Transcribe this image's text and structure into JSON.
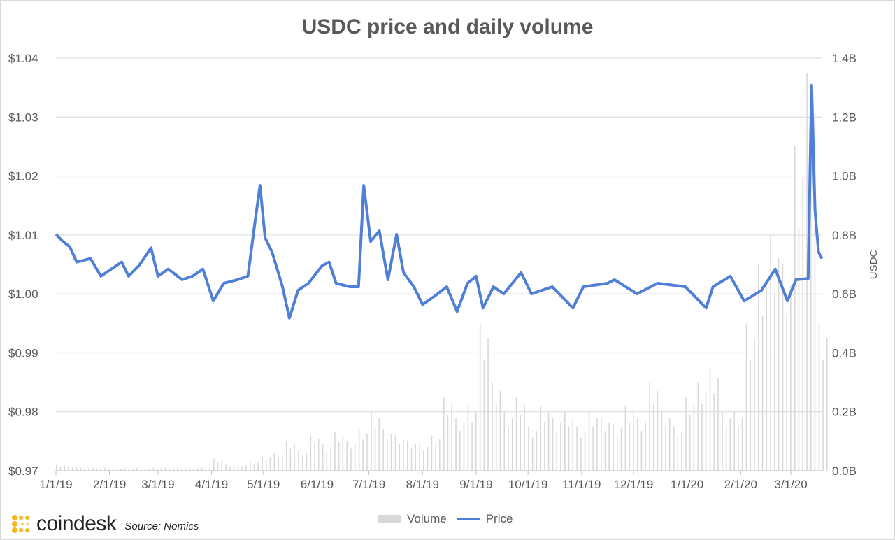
{
  "brand": {
    "name": "coindesk",
    "source": "Source: Nomics",
    "logo_color": "#f5b81c"
  },
  "chart_data": {
    "type": "bar+line",
    "title": "USDC price and daily volume",
    "xlabel": "",
    "ylabel_left": "",
    "ylabel_right": "USDC",
    "ylim_left": [
      0.97,
      1.04
    ],
    "ylim_right": [
      0,
      1.4
    ],
    "yticks_left": [
      "$0.97",
      "$0.98",
      "$0.99",
      "$1.00",
      "$1.01",
      "$1.02",
      "$1.03",
      "$1.04"
    ],
    "yticks_right": [
      "0.0B",
      "0.2B",
      "0.4B",
      "0.6B",
      "0.8B",
      "1.0B",
      "1.2B",
      "1.4B"
    ],
    "x_unit": "days since 1/1/19",
    "xticks": [
      {
        "label": "1/1/19",
        "day": 0
      },
      {
        "label": "2/1/19",
        "day": 31
      },
      {
        "label": "3/1/19",
        "day": 59
      },
      {
        "label": "4/1/19",
        "day": 90
      },
      {
        "label": "5/1/19",
        "day": 120
      },
      {
        "label": "6/1/19",
        "day": 151
      },
      {
        "label": "7/1/19",
        "day": 181
      },
      {
        "label": "8/1/19",
        "day": 212
      },
      {
        "label": "9/1/19",
        "day": 243
      },
      {
        "label": "10/1/19",
        "day": 273
      },
      {
        "label": "11/1/19",
        "day": 304
      },
      {
        "label": "12/1/19",
        "day": 334
      },
      {
        "label": "1/1/20",
        "day": 365
      },
      {
        "label": "2/1/20",
        "day": 396
      },
      {
        "label": "3/1/20",
        "day": 425
      }
    ],
    "grid": true,
    "legend": {
      "position": "bottom",
      "entries": [
        "Volume",
        "Price"
      ]
    },
    "colors": {
      "price": "#4f7fd6",
      "volume": "#d9d9d9",
      "grid": "#d9d9d9"
    },
    "series": [
      {
        "name": "Price",
        "axis": "left",
        "type": "line",
        "x": [
          0,
          4,
          8,
          12,
          20,
          26,
          32,
          38,
          42,
          48,
          55,
          59,
          65,
          73,
          79,
          85,
          91,
          97,
          105,
          111,
          115,
          118,
          121,
          125,
          131,
          135,
          140,
          146,
          154,
          158,
          162,
          170,
          175,
          178,
          182,
          187,
          192,
          197,
          201,
          207,
          212,
          218,
          226,
          232,
          238,
          243,
          247,
          253,
          259,
          269,
          275,
          287,
          299,
          305,
          319,
          323,
          336,
          348,
          364,
          376,
          380,
          390,
          398,
          408,
          416,
          423,
          428,
          435,
          437,
          439,
          441,
          443
        ],
        "values": [
          1.0101,
          1.0089,
          1.008,
          1.0054,
          1.006,
          1.003,
          1.0042,
          1.0054,
          1.003,
          1.0048,
          1.0078,
          1.003,
          1.0042,
          1.0024,
          1.003,
          1.0042,
          0.9988,
          1.0018,
          1.0024,
          1.003,
          1.0119,
          1.0184,
          1.0095,
          1.0071,
          1.0012,
          0.9959,
          1.0006,
          1.0018,
          1.0048,
          1.0054,
          1.0018,
          1.0012,
          1.0012,
          1.0184,
          1.0089,
          1.0107,
          1.0024,
          1.0101,
          1.0036,
          1.0012,
          0.9982,
          0.9994,
          1.0012,
          0.997,
          1.0018,
          1.003,
          0.9976,
          1.0012,
          1.0,
          1.0036,
          1.0,
          1.0012,
          0.9976,
          1.0012,
          1.0018,
          1.0024,
          1.0,
          1.0018,
          1.0012,
          0.9976,
          1.0012,
          1.003,
          0.9988,
          1.0006,
          1.0042,
          0.9988,
          1.0024,
          1.0026,
          1.0354,
          1.0142,
          1.0071,
          1.006
        ]
      },
      {
        "name": "Volume",
        "axis": "right",
        "type": "bar",
        "unit": "B",
        "x_step_days": 7,
        "values": [
          0.02,
          0.015,
          0.01,
          0.01,
          0.01,
          0.01,
          0.01,
          0.008,
          0.01,
          0.01,
          0.01,
          0.01,
          0.01,
          0.04,
          0.02,
          0.02,
          0.03,
          0.05,
          0.06,
          0.1,
          0.07,
          0.12,
          0.09,
          0.13,
          0.1,
          0.14,
          0.2,
          0.14,
          0.12,
          0.1,
          0.09,
          0.12,
          0.25,
          0.18,
          0.22,
          0.5,
          0.3,
          0.2,
          0.25,
          0.15,
          0.22,
          0.18,
          0.2,
          0.15,
          0.2,
          0.18,
          0.16,
          0.22,
          0.18,
          0.3,
          0.2,
          0.15,
          0.25,
          0.3,
          0.35,
          0.2,
          0.2,
          0.5,
          0.7,
          0.8,
          0.7,
          1.1,
          1.35,
          0.5
        ]
      }
    ]
  }
}
